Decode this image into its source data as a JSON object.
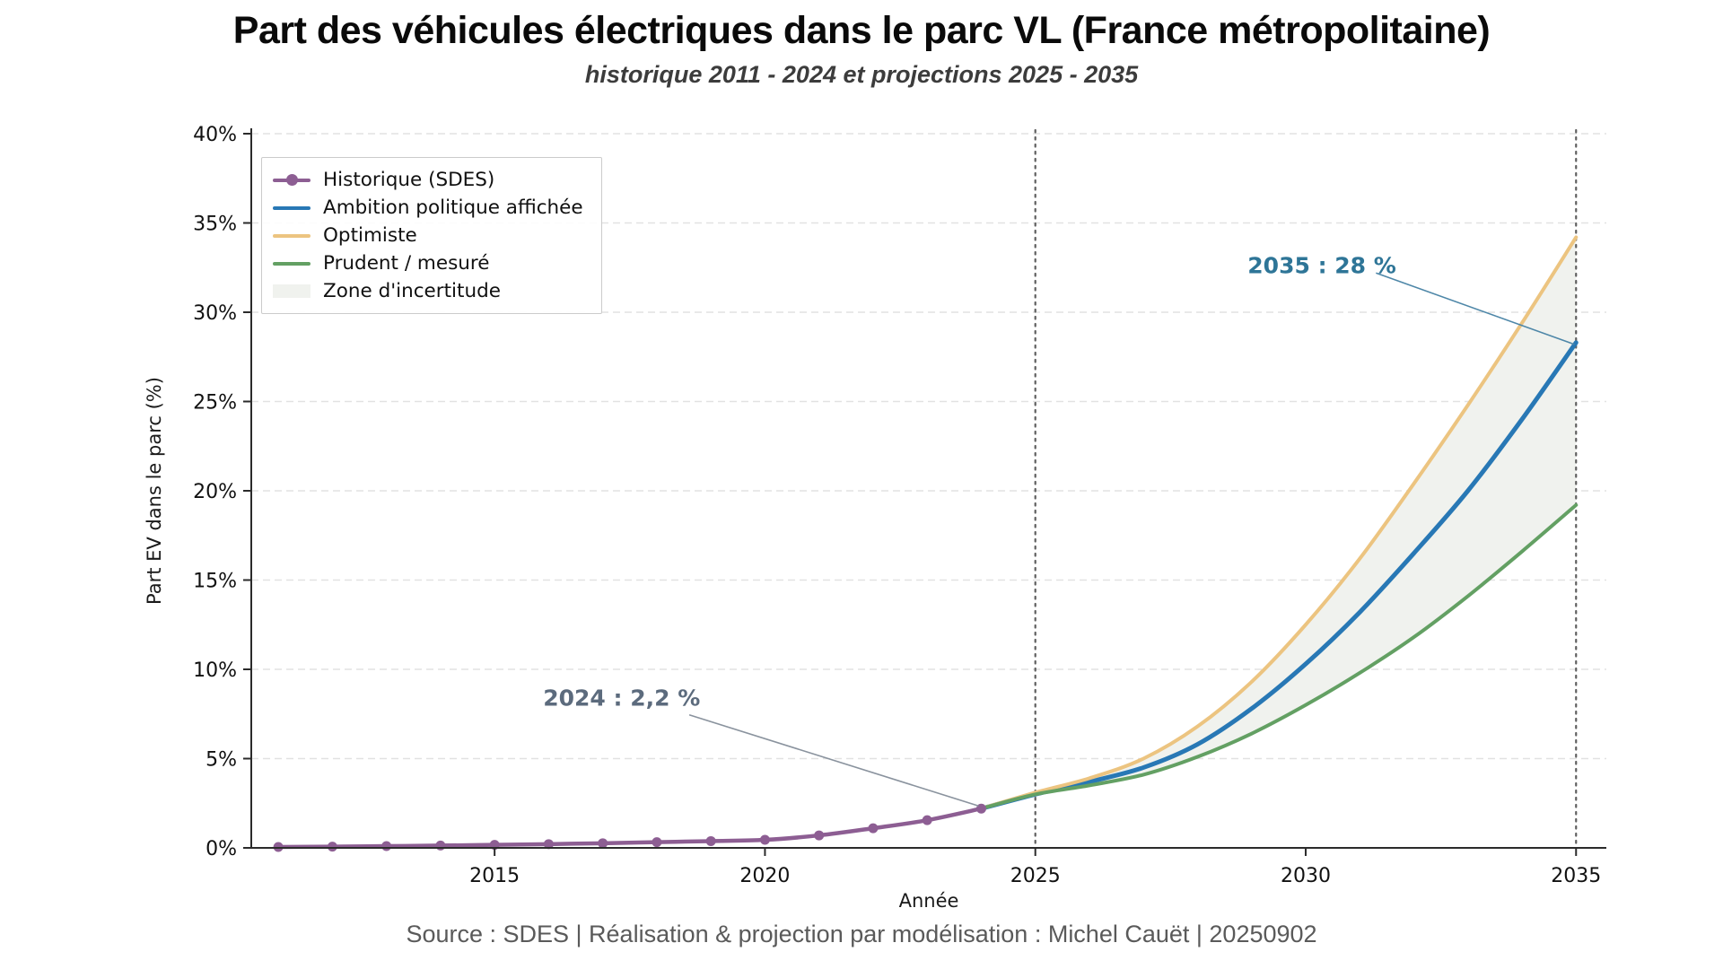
{
  "header": {
    "title": "Part des véhicules électriques dans le parc VL (France métropolitaine)",
    "subtitle": "historique 2011 - 2024 et projections 2025 - 2035"
  },
  "footer": {
    "text": "Source : SDES  | Réalisation & projection par modélisation : Michel Cauët | 20250902"
  },
  "chart_data": {
    "type": "line",
    "title": "Part des véhicules électriques dans le parc VL (France métropolitaine)",
    "subtitle": "historique 2011 - 2024 et projections 2025 - 2035",
    "xlabel": "Année",
    "ylabel": "Part EV dans le parc (%)",
    "xlim": [
      2010.5,
      2035.56
    ],
    "ylim": [
      0,
      40
    ],
    "x_ticks": [
      2015,
      2020,
      2025,
      2030,
      2035
    ],
    "y_ticks": [
      {
        "value": 0,
        "label": "0%"
      },
      {
        "value": 5,
        "label": "5%"
      },
      {
        "value": 10,
        "label": "10%"
      },
      {
        "value": 15,
        "label": "15%"
      },
      {
        "value": 20,
        "label": "20%"
      },
      {
        "value": 25,
        "label": "25%"
      },
      {
        "value": 30,
        "label": "30%"
      },
      {
        "value": 35,
        "label": "35%"
      },
      {
        "value": 40,
        "label": "40%"
      }
    ],
    "grid": "horizontal-dashed",
    "grid_color": "#e2e2e2",
    "spine_color": "#2b2b2b",
    "vlines": {
      "x": [
        2025,
        2035
      ],
      "color": "#5f5f5f",
      "style": "dotted"
    },
    "series": [
      {
        "name": "Ambition politique affichée",
        "color": "#2878b5",
        "width": 5,
        "x": [
          2024,
          2025,
          2026,
          2027,
          2028,
          2029,
          2030,
          2031,
          2032,
          2033,
          2034,
          2035
        ],
        "values": [
          2.2,
          3.0,
          3.7,
          4.5,
          5.8,
          7.8,
          10.3,
          13.2,
          16.5,
          20.0,
          24.0,
          28.3
        ]
      },
      {
        "name": "Optimiste",
        "color": "#ecc480",
        "width": 4,
        "x": [
          2024,
          2025,
          2026,
          2027,
          2028,
          2029,
          2030,
          2031,
          2032,
          2033,
          2034,
          2035
        ],
        "values": [
          2.2,
          3.1,
          3.9,
          5.0,
          6.8,
          9.3,
          12.5,
          16.2,
          20.4,
          24.8,
          29.4,
          34.2
        ]
      },
      {
        "name": "Prudent / mesuré",
        "color": "#63a063",
        "width": 4,
        "x": [
          2024,
          2025,
          2026,
          2027,
          2028,
          2029,
          2030,
          2031,
          2032,
          2033,
          2034,
          2035
        ],
        "values": [
          2.2,
          3.0,
          3.5,
          4.1,
          5.1,
          6.4,
          8.0,
          9.8,
          11.8,
          14.1,
          16.6,
          19.2
        ]
      },
      {
        "name": "Historique (SDES)",
        "color": "#8d5e93",
        "width": 4.5,
        "marker": "circle",
        "x": [
          2011,
          2012,
          2013,
          2014,
          2015,
          2016,
          2017,
          2018,
          2019,
          2020,
          2021,
          2022,
          2023,
          2024
        ],
        "values": [
          0.05,
          0.07,
          0.1,
          0.13,
          0.17,
          0.21,
          0.26,
          0.32,
          0.38,
          0.45,
          0.7,
          1.1,
          1.55,
          2.2
        ]
      }
    ],
    "uncertainty_band": {
      "label": "Zone d'incertitude",
      "upper": "Optimiste",
      "lower": "Prudent / mesuré",
      "color": "#f0f2ee"
    },
    "legend": {
      "position": "upper-left",
      "entries": [
        {
          "label": "Historique (SDES)",
          "type": "line-marker",
          "color": "#8d5e93"
        },
        {
          "label": "Ambition politique affichée",
          "type": "line",
          "color": "#2878b5"
        },
        {
          "label": "Optimiste",
          "type": "line",
          "color": "#ecc480"
        },
        {
          "label": "Prudent / mesuré",
          "type": "line",
          "color": "#63a063"
        },
        {
          "label": "Zone d'incertitude",
          "type": "patch",
          "color": "#f0f2ee"
        }
      ]
    },
    "annotations": [
      {
        "text": "2024 : 2,2 %",
        "color": "#5c6b7d",
        "cx": 2017.35,
        "cy": 8.4,
        "leader": [
          [
            2018.6,
            7.45
          ],
          [
            2023.95,
            2.35
          ]
        ],
        "line_color": "#8a939e"
      },
      {
        "text": "2035 : 28 %",
        "color": "#2e7597",
        "cx": 2030.3,
        "cy": 32.6,
        "leader": [
          [
            2031.3,
            32.2
          ],
          [
            2034.97,
            28.2
          ]
        ],
        "line_color": "#4e87a8"
      }
    ]
  }
}
